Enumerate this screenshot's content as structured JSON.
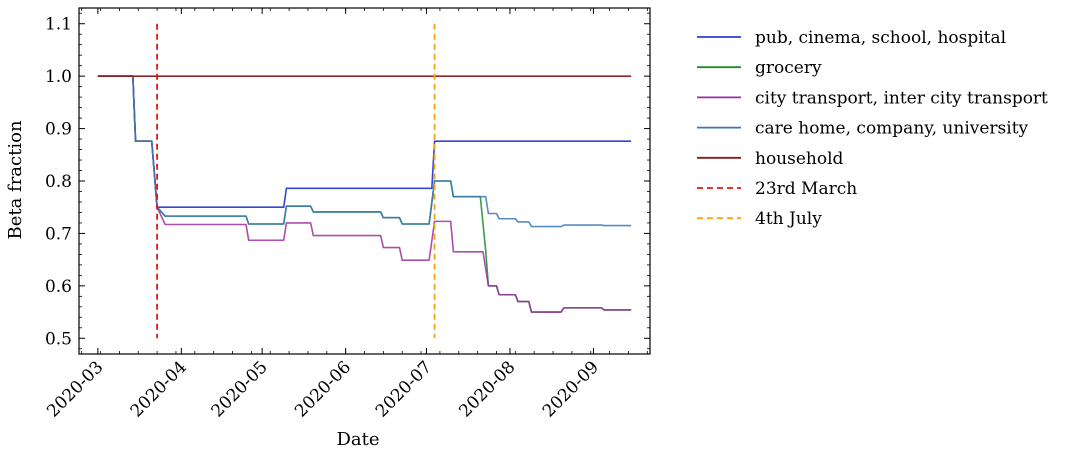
{
  "chart_data": {
    "type": "line",
    "xlabel": "Date",
    "ylabel": "Beta fraction",
    "x_ticks": [
      "2020-03",
      "2020-04",
      "2020-05",
      "2020-06",
      "2020-07",
      "2020-08",
      "2020-09"
    ],
    "y_ticks": [
      "0.5",
      "0.6",
      "0.7",
      "0.8",
      "0.9",
      "1.0",
      "1.1"
    ],
    "x_range": [
      "2020-02-23",
      "2020-09-22"
    ],
    "ylim": [
      0.47,
      1.13
    ],
    "grid": false,
    "legend_position": "outside-right",
    "series": [
      {
        "name": "pub, cinema, school, hospital",
        "color": "#2a3bd6",
        "points": [
          [
            "2020-03-01",
            1.0
          ],
          [
            "2020-03-14",
            1.0
          ],
          [
            "2020-03-15",
            0.876
          ],
          [
            "2020-03-21",
            0.876
          ],
          [
            "2020-03-23",
            0.75
          ],
          [
            "2020-05-09",
            0.75
          ],
          [
            "2020-05-10",
            0.786
          ],
          [
            "2020-07-03",
            0.786
          ],
          [
            "2020-07-04",
            0.876
          ],
          [
            "2020-09-15",
            0.876
          ]
        ]
      },
      {
        "name": "grocery",
        "color": "#1a8a2a",
        "points": [
          [
            "2020-03-01",
            1.0
          ],
          [
            "2020-03-14",
            1.0
          ],
          [
            "2020-03-15",
            0.876
          ],
          [
            "2020-03-21",
            0.876
          ],
          [
            "2020-03-23",
            0.75
          ],
          [
            "2020-03-26",
            0.733
          ],
          [
            "2020-04-25",
            0.733
          ],
          [
            "2020-04-26",
            0.718
          ],
          [
            "2020-05-09",
            0.718
          ],
          [
            "2020-05-10",
            0.752
          ],
          [
            "2020-05-19",
            0.752
          ],
          [
            "2020-05-20",
            0.741
          ],
          [
            "2020-06-14",
            0.741
          ],
          [
            "2020-06-15",
            0.73
          ],
          [
            "2020-06-21",
            0.73
          ],
          [
            "2020-06-22",
            0.718
          ],
          [
            "2020-07-02",
            0.718
          ],
          [
            "2020-07-04",
            0.8
          ],
          [
            "2020-07-10",
            0.8
          ],
          [
            "2020-07-11",
            0.77
          ],
          [
            "2020-07-21",
            0.77
          ],
          [
            "2020-07-23",
            0.667
          ],
          [
            "2020-07-24",
            0.6
          ],
          [
            "2020-07-27",
            0.6
          ],
          [
            "2020-07-28",
            0.583
          ],
          [
            "2020-08-03",
            0.583
          ],
          [
            "2020-08-04",
            0.57
          ],
          [
            "2020-08-08",
            0.57
          ],
          [
            "2020-08-09",
            0.55
          ],
          [
            "2020-08-20",
            0.55
          ],
          [
            "2020-08-21",
            0.558
          ],
          [
            "2020-09-04",
            0.558
          ],
          [
            "2020-09-05",
            0.554
          ],
          [
            "2020-09-15",
            0.554
          ]
        ]
      },
      {
        "name": "city transport, inter city transport",
        "color": "#9b2fa0",
        "points": [
          [
            "2020-03-01",
            1.0
          ],
          [
            "2020-03-14",
            1.0
          ],
          [
            "2020-03-15",
            0.876
          ],
          [
            "2020-03-21",
            0.876
          ],
          [
            "2020-03-23",
            0.75
          ],
          [
            "2020-03-26",
            0.717
          ],
          [
            "2020-04-25",
            0.717
          ],
          [
            "2020-04-26",
            0.687
          ],
          [
            "2020-05-09",
            0.687
          ],
          [
            "2020-05-10",
            0.72
          ],
          [
            "2020-05-19",
            0.72
          ],
          [
            "2020-05-20",
            0.696
          ],
          [
            "2020-06-14",
            0.696
          ],
          [
            "2020-06-15",
            0.673
          ],
          [
            "2020-06-21",
            0.673
          ],
          [
            "2020-06-22",
            0.649
          ],
          [
            "2020-07-02",
            0.649
          ],
          [
            "2020-07-04",
            0.723
          ],
          [
            "2020-07-10",
            0.723
          ],
          [
            "2020-07-11",
            0.665
          ],
          [
            "2020-07-22",
            0.665
          ],
          [
            "2020-07-24",
            0.6
          ],
          [
            "2020-07-27",
            0.6
          ],
          [
            "2020-07-28",
            0.583
          ],
          [
            "2020-08-03",
            0.583
          ],
          [
            "2020-08-04",
            0.57
          ],
          [
            "2020-08-08",
            0.57
          ],
          [
            "2020-08-09",
            0.55
          ],
          [
            "2020-08-20",
            0.55
          ],
          [
            "2020-08-21",
            0.558
          ],
          [
            "2020-09-04",
            0.558
          ],
          [
            "2020-09-05",
            0.554
          ],
          [
            "2020-09-15",
            0.554
          ]
        ]
      },
      {
        "name": "care home, company, university",
        "color": "#3a78b8",
        "points": [
          [
            "2020-03-01",
            1.0
          ],
          [
            "2020-03-14",
            1.0
          ],
          [
            "2020-03-15",
            0.876
          ],
          [
            "2020-03-21",
            0.876
          ],
          [
            "2020-03-23",
            0.75
          ],
          [
            "2020-03-26",
            0.733
          ],
          [
            "2020-04-25",
            0.733
          ],
          [
            "2020-04-26",
            0.718
          ],
          [
            "2020-05-09",
            0.718
          ],
          [
            "2020-05-10",
            0.752
          ],
          [
            "2020-05-19",
            0.752
          ],
          [
            "2020-05-20",
            0.741
          ],
          [
            "2020-06-14",
            0.741
          ],
          [
            "2020-06-15",
            0.73
          ],
          [
            "2020-06-21",
            0.73
          ],
          [
            "2020-06-22",
            0.718
          ],
          [
            "2020-07-02",
            0.718
          ],
          [
            "2020-07-04",
            0.8
          ],
          [
            "2020-07-10",
            0.8
          ],
          [
            "2020-07-11",
            0.77
          ],
          [
            "2020-07-23",
            0.77
          ],
          [
            "2020-07-24",
            0.738
          ],
          [
            "2020-07-27",
            0.738
          ],
          [
            "2020-07-28",
            0.728
          ],
          [
            "2020-08-03",
            0.728
          ],
          [
            "2020-08-04",
            0.722
          ],
          [
            "2020-08-08",
            0.722
          ],
          [
            "2020-08-09",
            0.713
          ],
          [
            "2020-08-20",
            0.713
          ],
          [
            "2020-08-21",
            0.716
          ],
          [
            "2020-09-04",
            0.716
          ],
          [
            "2020-09-05",
            0.715
          ],
          [
            "2020-09-15",
            0.715
          ]
        ]
      },
      {
        "name": "household",
        "color": "#8b1a1a",
        "points": [
          [
            "2020-03-01",
            1.0
          ],
          [
            "2020-09-15",
            1.0
          ]
        ]
      }
    ],
    "vlines": [
      {
        "name": "23rd March",
        "date": "2020-03-23",
        "color": "#e8150f",
        "ymin": 0.5,
        "ymax": 1.1
      },
      {
        "name": "4th July",
        "date": "2020-07-04",
        "color": "#f2a516",
        "ymin": 0.5,
        "ymax": 1.1
      }
    ]
  }
}
